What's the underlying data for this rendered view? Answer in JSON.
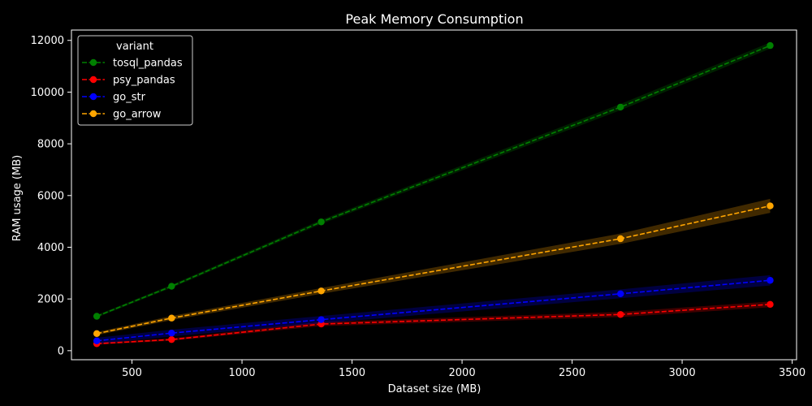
{
  "chart_data": {
    "type": "line",
    "title": "Peak Memory Consumption",
    "xlabel": "Dataset size (MB)",
    "ylabel": "RAM usage (MB)",
    "xlim": [
      225,
      3520
    ],
    "ylim": [
      -350,
      12400
    ],
    "xticks": [
      500,
      1000,
      1500,
      2000,
      2500,
      3000,
      3500
    ],
    "yticks": [
      0,
      2000,
      4000,
      6000,
      8000,
      10000,
      12000
    ],
    "legend_title": "variant",
    "legend_position": "top-left",
    "grid": false,
    "x": [
      340,
      680,
      1360,
      2720,
      3400
    ],
    "series": [
      {
        "name": "tosql_pandas",
        "color": "#008000",
        "values": [
          1330,
          2490,
          4980,
          9420,
          11800
        ],
        "band": [
          50,
          60,
          80,
          120,
          120
        ]
      },
      {
        "name": "psy_pandas",
        "color": "#ff0000",
        "values": [
          270,
          430,
          1030,
          1400,
          1790
        ],
        "band": [
          40,
          50,
          80,
          100,
          110
        ]
      },
      {
        "name": "go_str",
        "color": "#0000ff",
        "values": [
          380,
          680,
          1200,
          2200,
          2720
        ],
        "band": [
          120,
          130,
          140,
          170,
          200
        ]
      },
      {
        "name": "go_arrow",
        "color": "#ffa500",
        "values": [
          660,
          1260,
          2310,
          4330,
          5600
        ],
        "band": [
          60,
          80,
          110,
          200,
          270
        ]
      }
    ]
  }
}
